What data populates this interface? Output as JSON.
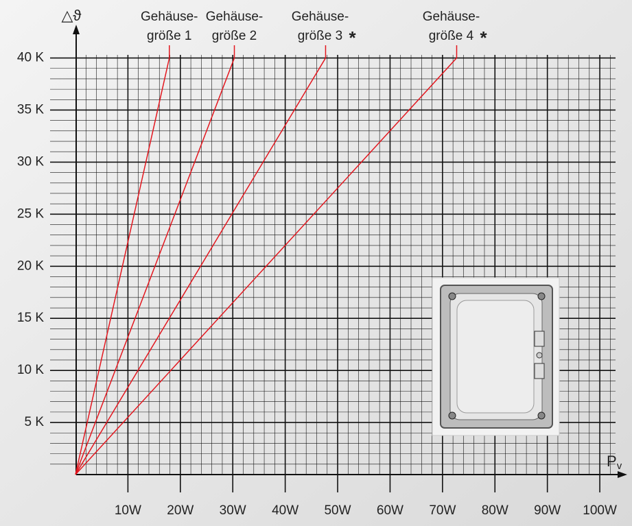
{
  "chart_data": {
    "type": "line",
    "ylabel": "△ϑ",
    "xlabel": {
      "main": "P",
      "sub": "v"
    },
    "xlim": [
      0,
      103
    ],
    "ylim": [
      0,
      40.3
    ],
    "xticks": [
      {
        "value": 10,
        "label": "10W"
      },
      {
        "value": 20,
        "label": "20W"
      },
      {
        "value": 30,
        "label": "30W"
      },
      {
        "value": 40,
        "label": "40W"
      },
      {
        "value": 50,
        "label": "50W"
      },
      {
        "value": 60,
        "label": "60W"
      },
      {
        "value": 70,
        "label": "70W"
      },
      {
        "value": 80,
        "label": "80W"
      },
      {
        "value": 90,
        "label": "90W"
      },
      {
        "value": 100,
        "label": "100W"
      }
    ],
    "yticks": [
      {
        "value": 5,
        "label": "5 K"
      },
      {
        "value": 10,
        "label": "10 K"
      },
      {
        "value": 15,
        "label": "15 K"
      },
      {
        "value": 20,
        "label": "20 K"
      },
      {
        "value": 25,
        "label": "25 K"
      },
      {
        "value": 30,
        "label": "30 K"
      },
      {
        "value": 35,
        "label": "35 K"
      },
      {
        "value": 40,
        "label": "40 K"
      }
    ],
    "xminor": [
      2,
      4,
      6,
      8,
      12,
      14,
      16,
      18,
      22,
      24,
      26,
      28,
      32,
      34,
      36,
      38,
      42,
      44,
      46,
      48,
      52,
      54,
      56,
      58,
      62,
      64,
      66,
      68,
      72,
      74,
      76,
      78,
      82,
      84,
      86,
      88,
      92,
      94,
      96,
      98,
      102
    ],
    "yminor": [
      1,
      2,
      3,
      4,
      6,
      7,
      8,
      9,
      11,
      12,
      13,
      14,
      16,
      17,
      18,
      19,
      21,
      22,
      23,
      24,
      26,
      27,
      28,
      29,
      31,
      32,
      33,
      34,
      36,
      37,
      38,
      39
    ],
    "grid": true,
    "series": [
      {
        "name": [
          "Gehäuse-",
          "größe 1"
        ],
        "color": "#e3161e",
        "x": [
          0,
          17.9
        ],
        "values": [
          0,
          40
        ]
      },
      {
        "name": [
          "Gehäuse-",
          "größe 2"
        ],
        "color": "#e3161e",
        "x": [
          0,
          30.3
        ],
        "values": [
          0,
          40
        ]
      },
      {
        "name": [
          "Gehäuse-",
          "größe 3"
        ],
        "note": "*",
        "color": "#e3161e",
        "x": [
          0,
          47.7
        ],
        "values": [
          0,
          40
        ]
      },
      {
        "name": [
          "Gehäuse-",
          "größe 4"
        ],
        "note": "*",
        "color": "#e3161e",
        "x": [
          0,
          72.7
        ],
        "values": [
          0,
          40
        ]
      }
    ]
  }
}
